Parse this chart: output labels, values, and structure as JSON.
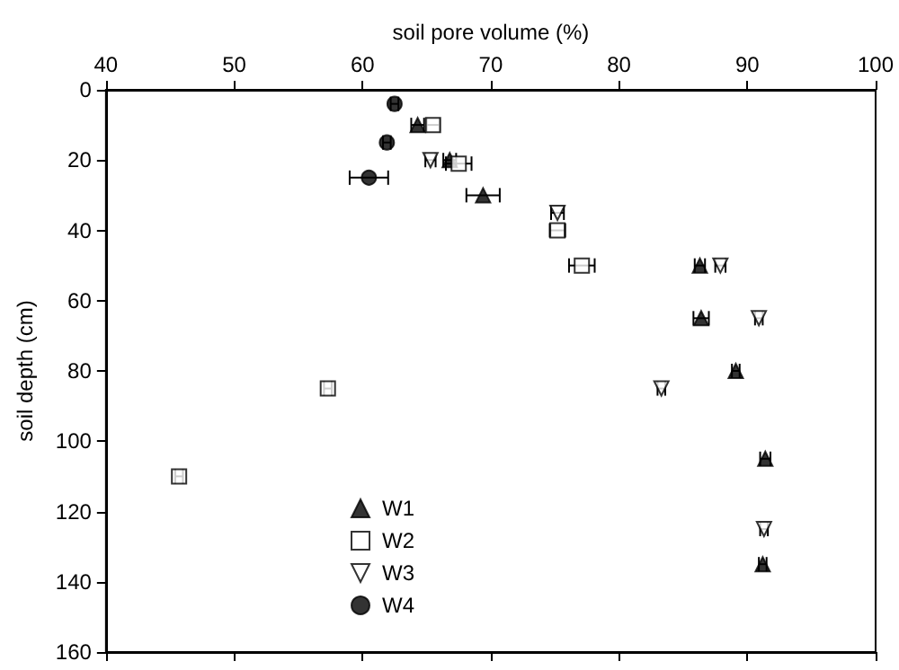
{
  "chart_data": {
    "type": "scatter",
    "xlabel": "soil pore volume (%)",
    "ylabel": "soil depth (cm)",
    "xlim": [
      40,
      100
    ],
    "xticks": [
      40,
      50,
      60,
      70,
      80,
      90,
      100
    ],
    "ylim": [
      160,
      0
    ],
    "yticks": [
      0,
      20,
      40,
      60,
      80,
      100,
      120,
      140,
      160
    ],
    "grid": false,
    "legend": "bottom",
    "series": [
      {
        "name": "W1",
        "color": "#000000",
        "marker": "triangle",
        "x": [
          64.3,
          66.8,
          69.4,
          86.3,
          86.4,
          89.1,
          91.4,
          91.2
        ],
        "values": [
          10,
          20,
          30,
          50,
          65,
          80,
          105,
          135
        ],
        "xerrors": [
          0.5,
          0.5,
          1.3,
          0.4,
          0.6,
          0.3,
          0.4,
          0.3
        ]
      },
      {
        "name": "W2",
        "color": "#000000",
        "marker": "square",
        "x": [
          65.5,
          67.5,
          75.2,
          77.1,
          57.3,
          45.7
        ],
        "values": [
          10,
          21,
          40,
          50,
          85,
          110
        ],
        "xerrors": [
          0.5,
          1,
          0.6,
          1,
          0.3,
          0.3
        ]
      },
      {
        "name": "W3",
        "color": "#000000",
        "marker": "triangle",
        "x": [
          65.3,
          75.2,
          87.9,
          90.9,
          83.3,
          91.3
        ],
        "values": [
          20,
          35,
          50,
          65,
          85,
          125
        ],
        "xerrors": [
          0.4,
          0.5,
          0.4,
          0.3,
          0.3,
          0.3
        ]
      },
      {
        "name": "W4",
        "color": "#000000",
        "marker": "circle",
        "x": [
          62.5,
          61.9,
          60.5
        ],
        "values": [
          4,
          15,
          25
        ],
        "xerrors": [
          0.3,
          0.3,
          1.5
        ]
      }
    ]
  }
}
